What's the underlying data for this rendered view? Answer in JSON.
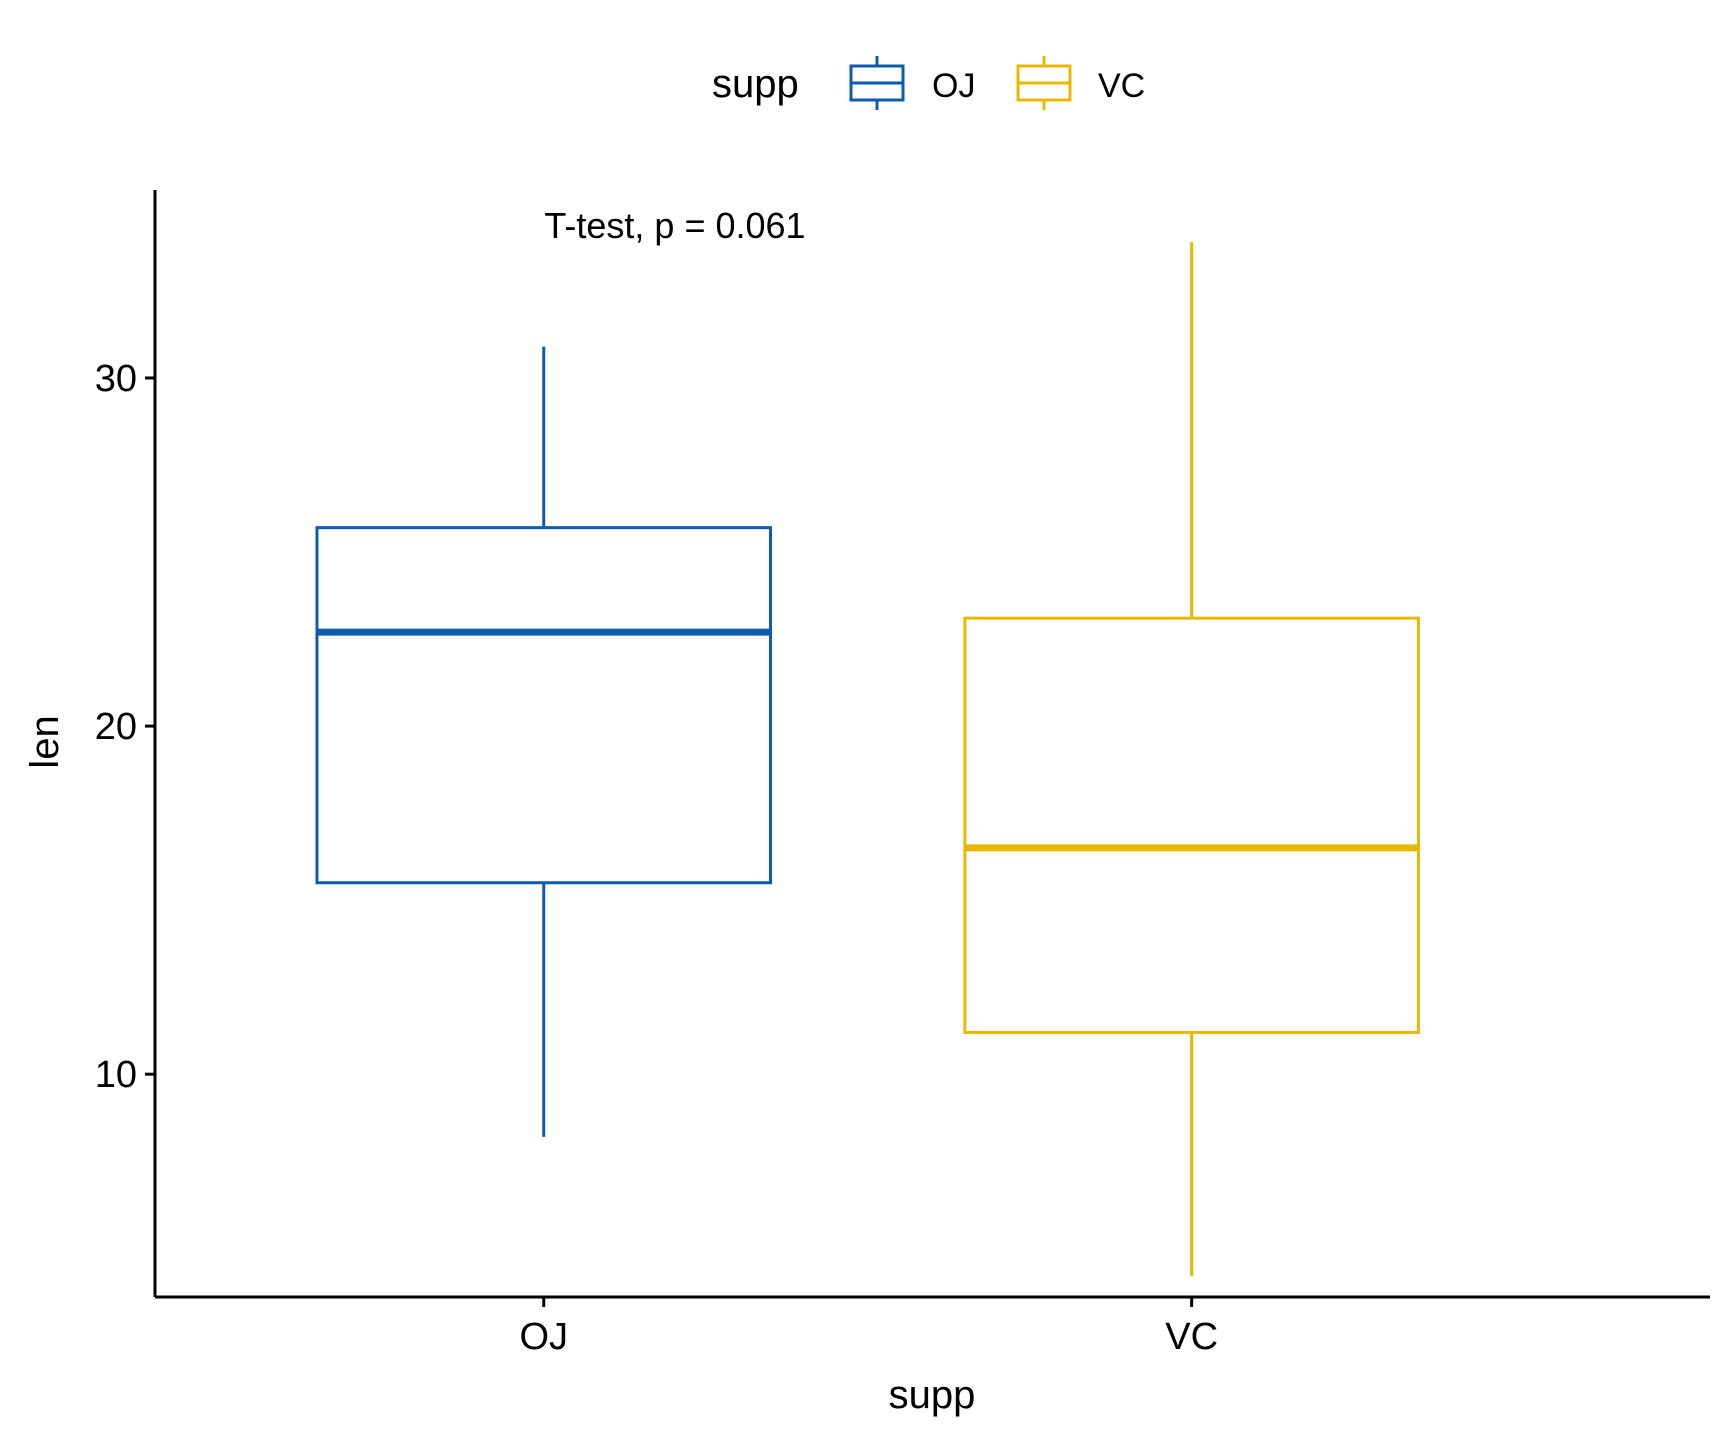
{
  "chart_data": {
    "type": "box",
    "xlabel": "supp",
    "ylabel": "len",
    "categories": [
      "OJ",
      "VC"
    ],
    "ylim": [
      3.6,
      35.4
    ],
    "y_ticks": [
      10,
      20,
      30
    ],
    "y_tick_labels": [
      "10",
      "20",
      "30"
    ],
    "grid": false,
    "legend": {
      "title": "supp",
      "position": "top",
      "entries": [
        {
          "label": "OJ",
          "color": "#0C5BB0"
        },
        {
          "label": "VC",
          "color": "#E8B800"
        }
      ]
    },
    "series": [
      {
        "category": "OJ",
        "color": "#0C5BB0",
        "whisker_low": 8.2,
        "q1": 15.5,
        "median": 22.7,
        "q3": 25.7,
        "whisker_high": 30.9
      },
      {
        "category": "VC",
        "color": "#E8B800",
        "whisker_low": 4.2,
        "q1": 11.2,
        "median": 16.5,
        "q3": 23.1,
        "whisker_high": 33.9
      }
    ],
    "annotation": "T-test, p = 0.061"
  }
}
